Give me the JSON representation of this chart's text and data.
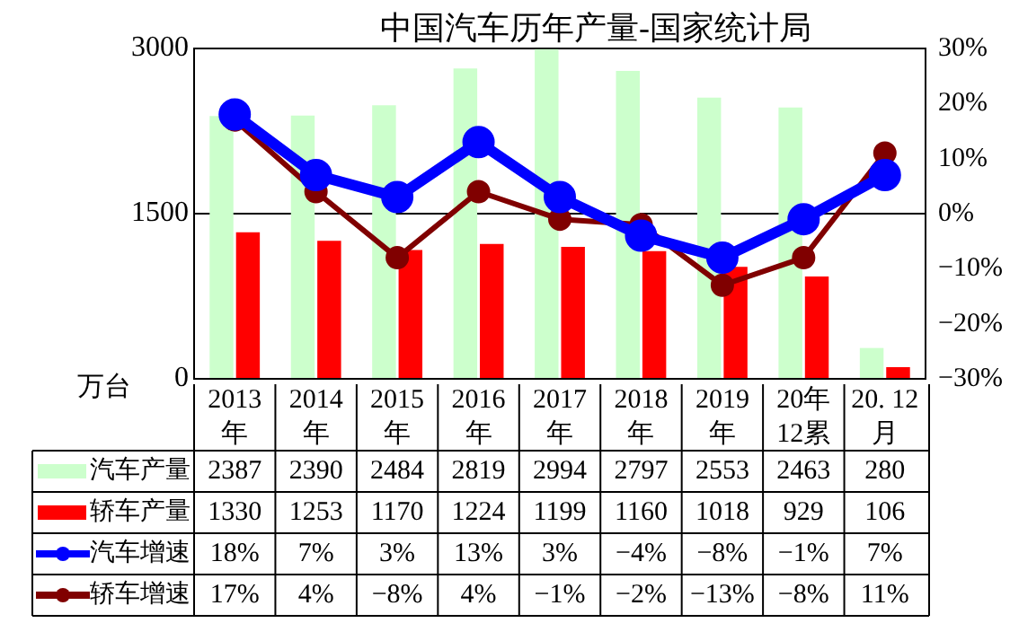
{
  "chart_data": {
    "type": "bar",
    "title": "中国汽车历年产量-国家统计局",
    "ylabel": "万台",
    "categories": [
      "2013\n年",
      "2014\n年",
      "2015\n年",
      "2016\n年",
      "2017\n年",
      "2018\n年",
      "2019\n年",
      "20年\n12累",
      "20. 12\n月"
    ],
    "series": [
      {
        "name": "汽车产量",
        "color": "#ccffcc",
        "values": [
          2387,
          2390,
          2484,
          2819,
          2994,
          2797,
          2553,
          2463,
          280
        ],
        "value_labels": [
          "2387",
          "2390",
          "2484",
          "2819",
          "2994",
          "2797",
          "2553",
          "2463",
          "280"
        ]
      },
      {
        "name": "轿车产量",
        "color": "#ff0000",
        "values": [
          1330,
          1253,
          1170,
          1224,
          1199,
          1160,
          1018,
          929,
          106
        ],
        "value_labels": [
          "1330",
          "1253",
          "1170",
          "1224",
          "1199",
          "1160",
          "1018",
          "929",
          "106"
        ]
      },
      {
        "name": "汽车增速",
        "type": "line",
        "axis": "y2",
        "color": "#0000ff",
        "values": [
          18,
          7,
          3,
          13,
          3,
          -4,
          -8,
          -1,
          7
        ],
        "value_labels": [
          "18%",
          "7%",
          "3%",
          "13%",
          "3%",
          "−4%",
          "−8%",
          "−1%",
          "7%"
        ]
      },
      {
        "name": "轿车增速",
        "type": "line",
        "axis": "y2",
        "color": "#800000",
        "values": [
          17,
          4,
          -8,
          4,
          -1,
          -2,
          -13,
          -8,
          11
        ],
        "value_labels": [
          "17%",
          "4%",
          "−8%",
          "4%",
          "−1%",
          "−2%",
          "−13%",
          "−8%",
          "11%"
        ]
      }
    ],
    "ylim": [
      0,
      3000
    ],
    "yticks": [
      0,
      1500,
      3000
    ],
    "y2lim": [
      -30,
      30
    ],
    "y2ticks": [
      {
        "value": -30,
        "label": "−30%"
      },
      {
        "value": -20,
        "label": "−20%"
      },
      {
        "value": -10,
        "label": "−10%"
      },
      {
        "value": 0,
        "label": "0%"
      },
      {
        "value": 10,
        "label": "10%"
      },
      {
        "value": 20,
        "label": "20%"
      },
      {
        "value": 30,
        "label": "30%"
      }
    ],
    "grid": "y",
    "legend": "bottom",
    "marker": "circle",
    "line_style": "solid"
  }
}
